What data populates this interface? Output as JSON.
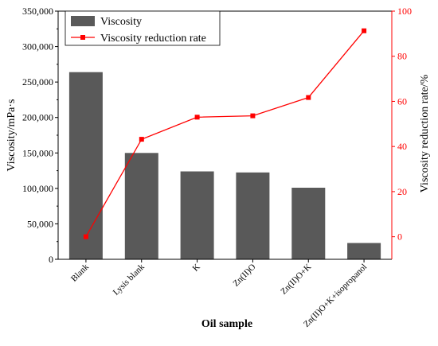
{
  "chart_data": {
    "type": "bar",
    "categories": [
      "Blank",
      "Lysis blank",
      "K",
      "Zn(II)O",
      "Zn(II)O+K",
      "Zn(II)O+K+isopropanol"
    ],
    "series": [
      {
        "name": "Viscosity",
        "type": "bar",
        "axis": "left",
        "color": "#595959",
        "values": [
          264000,
          150000,
          124000,
          122500,
          101000,
          23000
        ]
      },
      {
        "name": "Viscosity reduction rate",
        "type": "line",
        "axis": "right",
        "color": "#ff0000",
        "marker": "square",
        "values": [
          0,
          43.2,
          53.0,
          53.6,
          61.7,
          91.3
        ]
      }
    ],
    "xlabel": "Oil sample",
    "ylabel": "Viscosity/mPa·s",
    "ylabel_right": "Viscosity reduction rate/%",
    "ylim": [
      0,
      350000
    ],
    "yticks": [
      0,
      50000,
      100000,
      150000,
      200000,
      250000,
      300000,
      350000
    ],
    "ytick_labels": [
      "0",
      "50,000",
      "100,000",
      "150,000",
      "200,000",
      "250,000",
      "300,000",
      "350,000"
    ],
    "ylim_right": [
      -10,
      100
    ],
    "yticks_right": [
      0,
      20,
      40,
      60,
      80,
      100
    ],
    "ytick_labels_right": [
      "0",
      "20",
      "40",
      "60",
      "80",
      "100"
    ],
    "legend_position": "top-left",
    "grid": false
  }
}
